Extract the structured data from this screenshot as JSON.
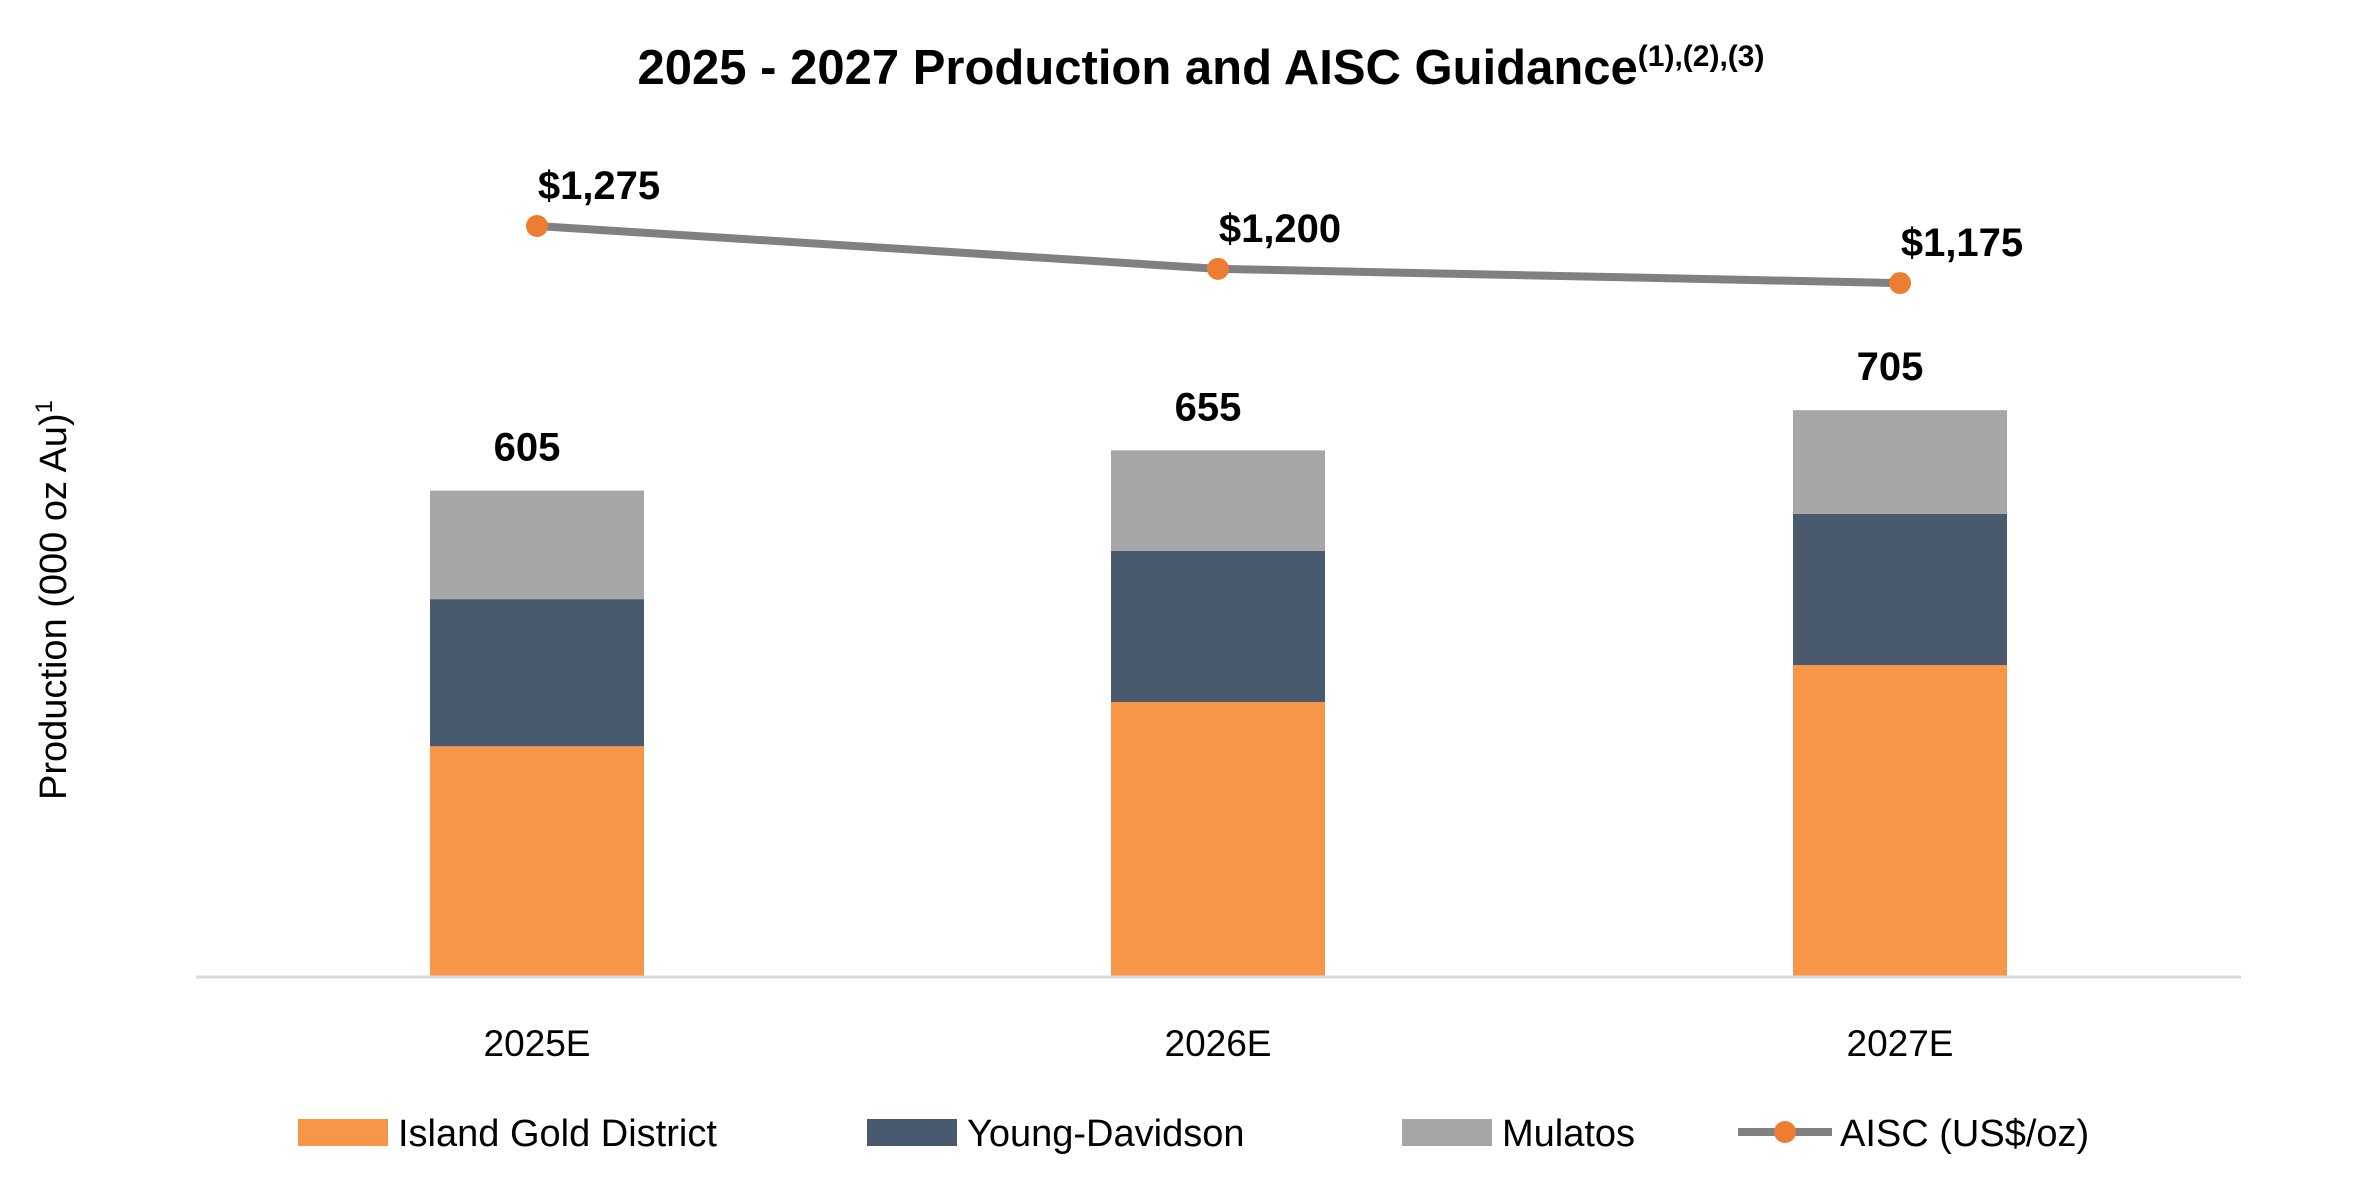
{
  "chart_data": {
    "type": "bar",
    "stacked": true,
    "title": "2025 - 2027 Production and AISC Guidance",
    "title_superscript": "(1),(2),(3)",
    "ylabel": "Production (000 oz Au)",
    "ylabel_superscript": "1",
    "xlabel": "",
    "categories": [
      "2025E",
      "2026E",
      "2027E"
    ],
    "series": [
      {
        "name": "Island Gold District",
        "color": "#F79646",
        "values": [
          287,
          342,
          388
        ]
      },
      {
        "name": "Young-Davidson",
        "color": "#4A5A6E",
        "values": [
          183,
          188,
          188
        ]
      },
      {
        "name": "Mulatos",
        "color": "#A6A6A6",
        "values": [
          135,
          125,
          129
        ]
      }
    ],
    "totals": [
      605,
      655,
      705
    ],
    "total_labels": [
      "605",
      "655",
      "705"
    ],
    "line_series": {
      "name": "AISC (US$/oz)",
      "line_color": "#808080",
      "marker_color": "#ED7D31",
      "values": [
        1275,
        1200,
        1175
      ],
      "labels": [
        "$1,275",
        "$1,200",
        "$1,175"
      ]
    },
    "ylim": [
      0,
      800
    ],
    "grid": false,
    "legend_placement": "bottom"
  }
}
